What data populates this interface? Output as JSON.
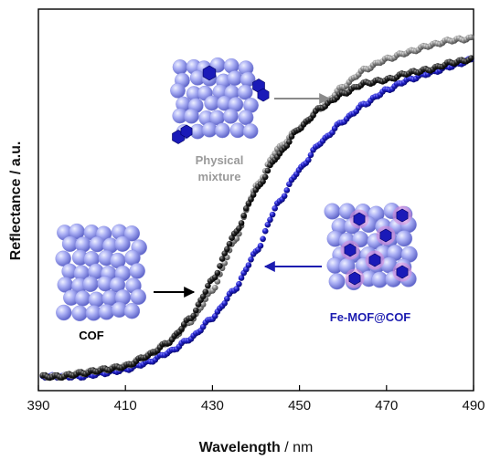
{
  "chart_data": {
    "type": "scatter",
    "xlabel_bold": "Wavelength",
    "xlabel_unit": " / nm",
    "ylabel": "Reflectance / a.u.",
    "xlim": [
      390,
      490
    ],
    "ylim": [
      0,
      1
    ],
    "x_ticks": [
      "390",
      "410",
      "430",
      "450",
      "470",
      "490"
    ],
    "y_ticks_labeled": false,
    "grid": false,
    "series": [
      {
        "name": "COF",
        "color": "#111111",
        "points": [
          [
            390,
            0.02
          ],
          [
            395,
            0.02
          ],
          [
            400,
            0.03
          ],
          [
            405,
            0.04
          ],
          [
            410,
            0.05
          ],
          [
            415,
            0.08
          ],
          [
            420,
            0.12
          ],
          [
            425,
            0.19
          ],
          [
            430,
            0.3
          ],
          [
            435,
            0.43
          ],
          [
            440,
            0.56
          ],
          [
            445,
            0.66
          ],
          [
            450,
            0.74
          ],
          [
            455,
            0.8
          ],
          [
            460,
            0.84
          ],
          [
            465,
            0.87
          ],
          [
            470,
            0.88
          ],
          [
            475,
            0.9
          ],
          [
            480,
            0.91
          ],
          [
            485,
            0.93
          ],
          [
            490,
            0.94
          ]
        ]
      },
      {
        "name": "Physical mixture",
        "color": "#7a7a7a",
        "points": [
          [
            390,
            0.02
          ],
          [
            395,
            0.02
          ],
          [
            400,
            0.03
          ],
          [
            405,
            0.04
          ],
          [
            410,
            0.05
          ],
          [
            415,
            0.08
          ],
          [
            420,
            0.12
          ],
          [
            425,
            0.18
          ],
          [
            430,
            0.27
          ],
          [
            435,
            0.41
          ],
          [
            440,
            0.57
          ],
          [
            445,
            0.68
          ],
          [
            450,
            0.74
          ],
          [
            455,
            0.8
          ],
          [
            460,
            0.86
          ],
          [
            465,
            0.91
          ],
          [
            470,
            0.94
          ],
          [
            475,
            0.96
          ],
          [
            480,
            0.98
          ],
          [
            485,
            0.995
          ],
          [
            490,
            1.0
          ]
        ]
      },
      {
        "name": "Fe-MOF@COF",
        "color": "#1c1cb0",
        "points": [
          [
            390,
            0.02
          ],
          [
            395,
            0.02
          ],
          [
            400,
            0.02
          ],
          [
            405,
            0.03
          ],
          [
            410,
            0.04
          ],
          [
            415,
            0.06
          ],
          [
            420,
            0.09
          ],
          [
            425,
            0.13
          ],
          [
            430,
            0.19
          ],
          [
            435,
            0.27
          ],
          [
            440,
            0.38
          ],
          [
            445,
            0.52
          ],
          [
            450,
            0.62
          ],
          [
            455,
            0.7
          ],
          [
            460,
            0.76
          ],
          [
            465,
            0.81
          ],
          [
            470,
            0.85
          ],
          [
            475,
            0.88
          ],
          [
            480,
            0.9
          ],
          [
            485,
            0.92
          ],
          [
            490,
            0.94
          ]
        ]
      }
    ],
    "annotations": {
      "cof_label": "COF",
      "mixture_line1": "Physical",
      "mixture_line2": "mixture",
      "femof_label": "Fe-MOF@COF"
    }
  }
}
